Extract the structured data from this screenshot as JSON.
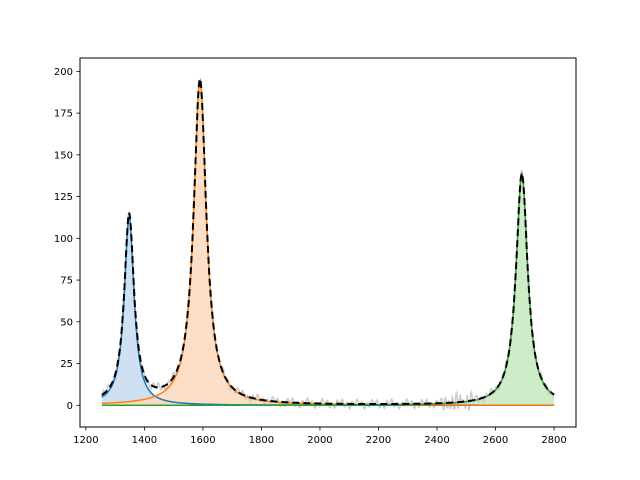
{
  "chart_data": {
    "type": "line",
    "title": "",
    "xlabel": "",
    "ylabel": "",
    "xlim": [
      1180,
      2875
    ],
    "ylim": [
      -13,
      208
    ],
    "x_ticks": [
      1200,
      1400,
      1600,
      1800,
      2000,
      2200,
      2400,
      2600,
      2800
    ],
    "y_ticks": [
      0,
      25,
      50,
      75,
      100,
      125,
      150,
      175,
      200
    ],
    "x_range": [
      1255,
      2800
    ],
    "grid": false,
    "legend": "none",
    "peaks": [
      {
        "center": 1348,
        "amplitude": 113,
        "hwhm": 20,
        "color": "#1f77b4",
        "fill": "#c6dbef"
      },
      {
        "center": 1590,
        "amplitude": 195,
        "hwhm": 26,
        "color": "#ff7f0e",
        "fill": "#fdd9bd"
      },
      {
        "center": 2690,
        "amplitude": 139,
        "hwhm": 24,
        "color": "#2ca02c",
        "fill": "#c7e9c0"
      }
    ],
    "series": [
      {
        "role": "measured",
        "color": "#cccccc",
        "style": "solid"
      },
      {
        "role": "peak",
        "color": "#1f77b4",
        "style": "solid"
      },
      {
        "role": "peak",
        "color": "#ff7f0e",
        "style": "solid"
      },
      {
        "role": "peak",
        "color": "#2ca02c",
        "style": "solid"
      },
      {
        "role": "fit",
        "color": "#000000",
        "style": "dashed"
      }
    ]
  }
}
